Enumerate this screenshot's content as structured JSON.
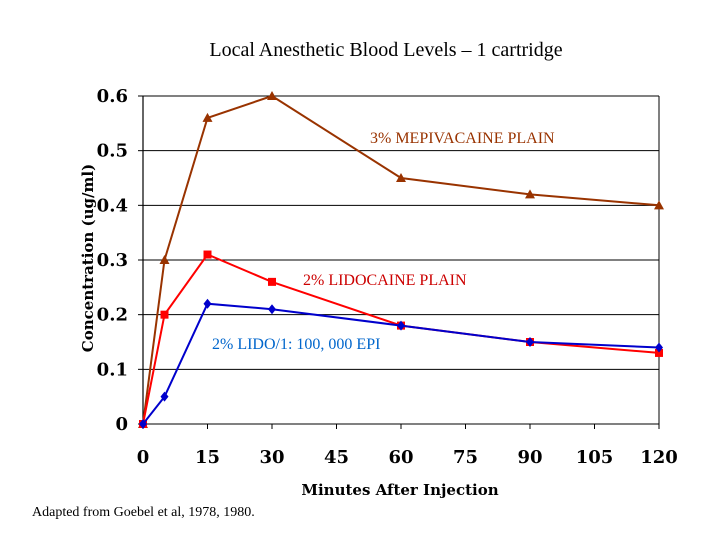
{
  "chart_data": {
    "type": "line",
    "title": "Local Anesthetic Blood Levels – 1 cartridge",
    "xlabel": "Minutes After Injection",
    "ylabel": "Concentration (ug/ml)",
    "xlim": [
      0,
      120
    ],
    "ylim": [
      0,
      0.6
    ],
    "x_ticks": [
      "0",
      "15",
      "30",
      "45",
      "60",
      "75",
      "90",
      "105",
      "120"
    ],
    "y_ticks": [
      "0",
      "0.1",
      "0.2",
      "0.3",
      "0.4",
      "0.5",
      "0.6"
    ],
    "grid": "horizontal",
    "series": [
      {
        "name": "3% MEPIVACAINE PLAIN",
        "color": "#993300",
        "marker": "triangle",
        "x": [
          0,
          5,
          15,
          30,
          60,
          90,
          120
        ],
        "y": [
          0,
          0.3,
          0.56,
          0.6,
          0.45,
          0.42,
          0.4
        ]
      },
      {
        "name": "2% LIDOCAINE PLAIN",
        "color": "#ff0000",
        "marker": "square",
        "x": [
          0,
          5,
          15,
          30,
          60,
          90,
          120
        ],
        "y": [
          0,
          0.2,
          0.31,
          0.26,
          0.18,
          0.15,
          0.13
        ]
      },
      {
        "name": "2% LIDO/1: 100, 000 EPI",
        "color": "#0000cc",
        "marker": "diamond",
        "x": [
          0,
          5,
          15,
          30,
          60,
          90,
          120
        ],
        "y": [
          0,
          0.05,
          0.22,
          0.21,
          0.18,
          0.15,
          0.14
        ]
      }
    ]
  },
  "footnote": "Adapted from Goebel et al, 1978, 1980."
}
